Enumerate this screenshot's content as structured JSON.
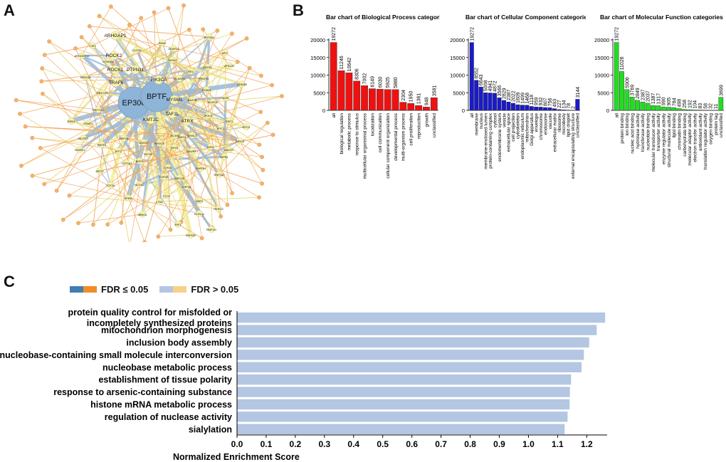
{
  "panels": {
    "a": "A",
    "b": "B",
    "c": "C"
  },
  "legend": {
    "significant": "FDR ≤ 0.05",
    "not_significant": "FDR > 0.05",
    "colors": {
      "sig_blue": "#3f7db5",
      "sig_orange": "#f28c26",
      "ns_blue": "#b3c6e2",
      "ns_orange": "#f9d08a"
    }
  },
  "network": {
    "hub_color": "#8eb4d8",
    "node_color": "#f6f3b0",
    "gene_nodes": [
      "EP300",
      "BPTF",
      "PTPN11",
      "PIK3CA",
      "TRAF6",
      "KMT2C",
      "TAF1L",
      "ATRX",
      "MYSM1",
      "ROCK1",
      "ROCK2",
      "ARHGAP1",
      "TJP1",
      "CTNND1",
      "PKFYVE",
      "SMG1",
      "NR3C1",
      "UBXN7",
      "MEF2A",
      "ATF2",
      "BDP1",
      "GTF2A1",
      "NCOA2",
      "LTN1",
      "UBR1",
      "HERC2",
      "KLHL11",
      "SHPRH",
      "TAOK3",
      "CLOCK",
      "PAN2",
      "AKAP13",
      "MYO5A",
      "APC",
      "TBCEL",
      "REL",
      "PRKRD",
      "CLASP1",
      "STAB1",
      "SCAF11",
      "RSF1",
      "EPC1",
      "EPC2",
      "POLK",
      "AGR",
      "VPS13C",
      "ARHGEF12",
      "ERN1",
      "RIF1",
      "SBNO1",
      "NCOR2",
      "DHX9",
      "PSMF1",
      "SMURF1",
      "SIRT2",
      "NR2F2",
      "TOP2B",
      "USP34",
      "CHD6",
      "KIF1B",
      "DMXL2",
      "IWS1",
      "NIPBL",
      "ZNF532",
      "RNF111",
      "HUWE1",
      "TCF20",
      "SPEN",
      "RC3H2",
      "MACF1",
      "BIRC6",
      "KDM3B",
      "ARID1B",
      "RB1CC1",
      "BAZ2B",
      "CTCF",
      "MED13",
      "RNF169"
    ]
  },
  "chart_data": [
    {
      "type": "bar",
      "title": "Bar chart of Biological Process categories",
      "color": "#ee1111",
      "categories": [
        "all",
        "biological regulation",
        "metabolic process",
        "response to stimulus",
        "multicellular organismal process",
        "localization",
        "cell communication",
        "cellular component organization",
        "developmental process",
        "multi-organism process",
        "cell proliferation",
        "reproduction",
        "growth",
        "unclassified"
      ],
      "values": [
        19272,
        11246,
        10642,
        8306,
        7002,
        6149,
        6030,
        5925,
        5880,
        2304,
        1950,
        1361,
        948,
        3581
      ],
      "ylim": [
        0,
        20000
      ],
      "yticks": [
        0,
        5000,
        10000,
        15000,
        20000
      ]
    },
    {
      "type": "bar",
      "title": "Bar chart of Cellular Component categories",
      "color": "#1a1acc",
      "categories": [
        "all",
        "membrane",
        "nucleus",
        "membrane-enclosed lumen",
        "protein-containing complex",
        "cytosol",
        "endomembrane system",
        "vesicle",
        "extracellular space",
        "cell projection",
        "cytoskeleton",
        "endoplasmic reticulum",
        "mitochondrion",
        "Golgi apparatus",
        "envelope",
        "chromosome",
        "endosome",
        "vacuole",
        "extracellular matrix",
        "ribosome",
        "microbody",
        "lipid droplet",
        "external encapsulating structure",
        "unclassified"
      ],
      "values": [
        19272,
        8552,
        6643,
        5008,
        4941,
        4872,
        3566,
        2829,
        2387,
        2022,
        1609,
        1499,
        1468,
        1118,
        959,
        932,
        807,
        756,
        493,
        227,
        134,
        78,
        2,
        3144
      ],
      "ylim": [
        0,
        20000
      ],
      "yticks": [
        0,
        5000,
        10000,
        15000,
        20000
      ]
    },
    {
      "type": "bar",
      "title": "Bar chart of Molecular Function categories",
      "color": "#22dd22",
      "categories": [
        "all",
        "protein binding",
        "ion binding",
        "nucleic acid binding",
        "hydrolase activity",
        "transferase activity",
        "nucleotide binding",
        "molecular transducer activity",
        "transporter activity",
        "enzyme regulator activity",
        "structural molecule activity",
        "lipid binding",
        "chromatin binding",
        "carbohydrate binding",
        "molecular adaptor activity",
        "electron transfer activity",
        "antioxidant activity",
        "translation regulator activity",
        "oxygen binding",
        "protein tag",
        "unclassified"
      ],
      "values": [
        19272,
        11026,
        5906,
        3769,
        2849,
        2387,
        2037,
        1387,
        1317,
        990,
        905,
        784,
        498,
        258,
        192,
        104,
        83,
        58,
        32,
        11,
        3699
      ],
      "ylim": [
        0,
        20000
      ],
      "yticks": [
        0,
        5000,
        10000,
        15000,
        20000
      ]
    },
    {
      "type": "bar",
      "orientation": "horizontal",
      "xlabel": "Normalized Enrichment Score",
      "color": "#b3c6e2",
      "categories": [
        "protein quality control for misfolded or incompletely synthesized proteins",
        "mitochondrion morphogenesis",
        "inclusion body assembly",
        "nucleobase-containing small molecule interconversion",
        "nucleobase metabolic process",
        "establishment of tissue polarity",
        "response to arsenic-containing substance",
        "histone mRNA metabolic process",
        "regulation of nuclease activity",
        "sialylation"
      ],
      "labels": [
        [
          "protein quality control for misfolded or",
          "incompletely synthesized proteins"
        ],
        [
          "mitochondrion morphogenesis"
        ],
        [
          "inclusion body assembly"
        ],
        [
          "nucleobase-containing small molecule interconversion"
        ],
        [
          "nucleobase metabolic process"
        ],
        [
          "establishment of tissue polarity"
        ],
        [
          "response to arsenic-containing substance"
        ],
        [
          "histone mRNA metabolic process"
        ],
        [
          "regulation of nuclease activity"
        ],
        [
          "sialylation"
        ]
      ],
      "values": [
        1.262,
        1.233,
        1.207,
        1.189,
        1.181,
        1.145,
        1.141,
        1.14,
        1.133,
        1.123
      ],
      "xlim": [
        0,
        1.27
      ],
      "xticks": [
        "0.0",
        "0.1",
        "0.2",
        "0.3",
        "0.4",
        "0.5",
        "0.6",
        "0.7",
        "0.8",
        "0.9",
        "1.0",
        "1.1",
        "1.2"
      ]
    }
  ]
}
